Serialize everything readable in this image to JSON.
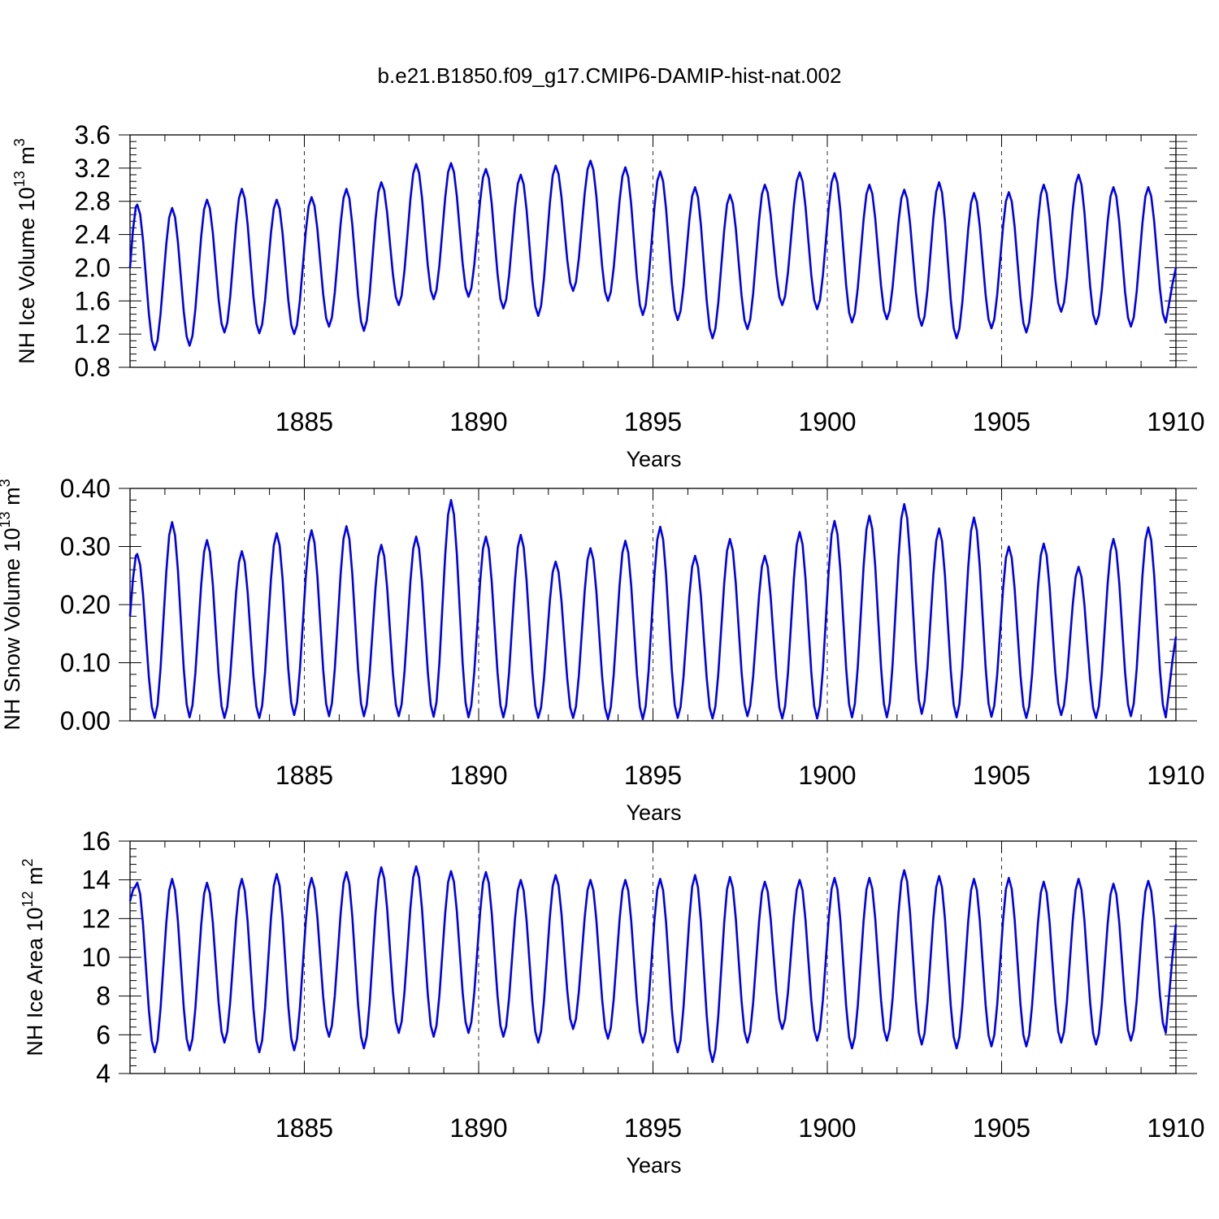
{
  "title": "b.e21.B1850.f09_g17.CMIP6-DAMIP-hist-nat.002",
  "line_color": "#0000ee",
  "chart_data": [
    {
      "type": "line",
      "name": "ice-volume",
      "xlabel": "Years",
      "ylabel_main": "NH Ice Volume 10",
      "ylabel_exp": "13",
      "ylabel_unit": " m",
      "ylabel_unit_exp": "3",
      "xlim": [
        1880.0,
        1910.0
      ],
      "ylim": [
        0.8,
        3.6
      ],
      "xticks": [
        "1885",
        "1890",
        "1895",
        "1900",
        "1905",
        "1910"
      ],
      "yticks": [
        "0.8",
        "1.2",
        "1.6",
        "2.0",
        "2.4",
        "2.8",
        "3.2",
        "3.6"
      ],
      "maxima": [
        2.76,
        2.72,
        2.82,
        2.95,
        2.82,
        2.85,
        2.95,
        3.03,
        3.25,
        3.26,
        3.19,
        3.12,
        3.23,
        3.29,
        3.21,
        3.16,
        2.97,
        2.88,
        3.0,
        3.15,
        3.14,
        3.0,
        2.94,
        3.03,
        2.9,
        2.91,
        3.0,
        3.12,
        2.97,
        2.97
      ],
      "minima": [
        1.01,
        1.06,
        1.22,
        1.21,
        1.2,
        1.29,
        1.24,
        1.55,
        1.62,
        1.65,
        1.51,
        1.42,
        1.72,
        1.6,
        1.43,
        1.37,
        1.15,
        1.26,
        1.55,
        1.5,
        1.34,
        1.38,
        1.3,
        1.15,
        1.27,
        1.22,
        1.47,
        1.32,
        1.29,
        1.34
      ],
      "start": 2.0,
      "end": 2.0
    },
    {
      "type": "line",
      "name": "snow-volume",
      "xlabel": "Years",
      "ylabel_main": "NH Snow Volume 10",
      "ylabel_exp": "13",
      "ylabel_unit": " m",
      "ylabel_unit_exp": "3",
      "xlim": [
        1880.0,
        1910.0
      ],
      "ylim": [
        0.0,
        0.4
      ],
      "xticks": [
        "1885",
        "1890",
        "1895",
        "1900",
        "1905",
        "1910"
      ],
      "yticks": [
        "0.00",
        "0.10",
        "0.20",
        "0.30",
        "0.40"
      ],
      "maxima": [
        0.287,
        0.342,
        0.311,
        0.292,
        0.323,
        0.328,
        0.335,
        0.303,
        0.317,
        0.38,
        0.317,
        0.32,
        0.274,
        0.297,
        0.31,
        0.334,
        0.284,
        0.313,
        0.284,
        0.325,
        0.344,
        0.353,
        0.373,
        0.331,
        0.35,
        0.3,
        0.305,
        0.265,
        0.313,
        0.333
      ],
      "minima": [
        0.005,
        0.006,
        0.005,
        0.005,
        0.01,
        0.008,
        0.008,
        0.008,
        0.007,
        0.006,
        0.006,
        0.005,
        0.005,
        0.003,
        0.003,
        0.005,
        0.004,
        0.008,
        0.004,
        0.004,
        0.006,
        0.006,
        0.012,
        0.006,
        0.007,
        0.005,
        0.01,
        0.005,
        0.008,
        0.006
      ],
      "start": 0.18,
      "end": 0.145
    },
    {
      "type": "line",
      "name": "ice-area",
      "xlabel": "Years",
      "ylabel_main": "NH Ice Area 10",
      "ylabel_exp": "12",
      "ylabel_unit": " m",
      "ylabel_unit_exp": "2",
      "xlim": [
        1880.0,
        1910.0
      ],
      "ylim": [
        4,
        16
      ],
      "xticks": [
        "1885",
        "1890",
        "1895",
        "1900",
        "1905",
        "1910"
      ],
      "yticks": [
        "4",
        "6",
        "8",
        "10",
        "12",
        "14",
        "16"
      ],
      "maxima": [
        13.85,
        14.05,
        13.85,
        14.05,
        14.3,
        14.1,
        14.4,
        14.65,
        14.7,
        14.45,
        14.4,
        14.0,
        14.25,
        14.0,
        14.0,
        14.05,
        14.25,
        14.15,
        13.9,
        14.0,
        14.1,
        14.1,
        14.5,
        14.2,
        14.05,
        14.1,
        13.9,
        14.05,
        13.8,
        13.95
      ],
      "minima": [
        5.1,
        5.2,
        5.6,
        5.1,
        5.2,
        5.9,
        5.3,
        6.1,
        5.9,
        6.1,
        5.9,
        5.6,
        6.3,
        5.8,
        5.6,
        5.1,
        4.6,
        5.6,
        6.3,
        5.7,
        5.3,
        5.7,
        5.5,
        5.3,
        5.4,
        5.4,
        5.6,
        5.5,
        5.7,
        6.1
      ],
      "start": 12.9,
      "end": 11.7
    }
  ]
}
